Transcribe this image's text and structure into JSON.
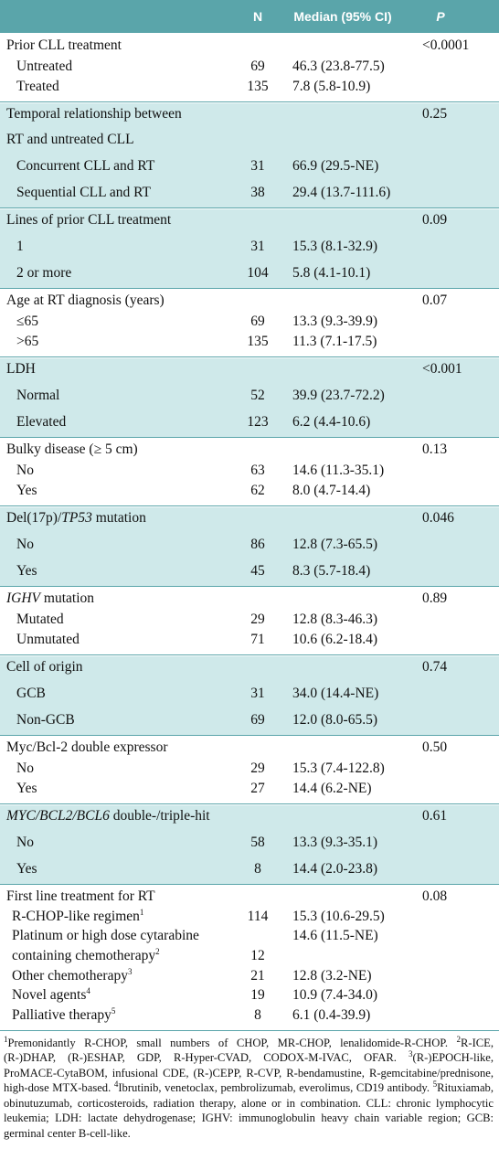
{
  "header": {
    "n": "N",
    "median": "Median (95% CI)",
    "p": "P"
  },
  "sections": [
    {
      "shaded": false,
      "title_parts": [
        {
          "text": "Prior CLL treatment"
        }
      ],
      "p": "<0.0001",
      "rows": [
        {
          "label": "Untreated",
          "n": 69,
          "median": "46.3 (23.8-77.5)"
        },
        {
          "label": "Treated",
          "n": 135,
          "median": "7.8 (5.8-10.9)"
        }
      ]
    },
    {
      "shaded": true,
      "title_parts": [
        {
          "text": "Temporal relationship between"
        },
        {
          "text": "RT and untreated CLL",
          "newline": true
        }
      ],
      "p": "0.25",
      "rows": [
        {
          "label": "Concurrent CLL and RT",
          "n": 31,
          "median": "66.9 (29.5-NE)"
        },
        {
          "label": "Sequential CLL and RT",
          "n": 38,
          "median": "29.4 (13.7-111.6)"
        }
      ]
    },
    {
      "shaded": true,
      "title_parts": [
        {
          "text": "Lines of prior CLL treatment"
        }
      ],
      "p": "0.09",
      "rows": [
        {
          "label": "1",
          "n": 31,
          "median": "15.3 (8.1-32.9)"
        },
        {
          "label": "2 or more",
          "n": 104,
          "median": "5.8 (4.1-10.1)"
        }
      ]
    },
    {
      "shaded": false,
      "title_parts": [
        {
          "text": "Age at RT diagnosis (years)"
        }
      ],
      "p": "0.07",
      "rows": [
        {
          "label": "≤65",
          "n": 69,
          "median": "13.3 (9.3-39.9)"
        },
        {
          "label": ">65",
          "n": 135,
          "median": "11.3 (7.1-17.5)"
        }
      ]
    },
    {
      "shaded": true,
      "title_parts": [
        {
          "text": "LDH"
        }
      ],
      "p": "<0.001",
      "rows": [
        {
          "label": "Normal",
          "n": 52,
          "median": "39.9 (23.7-72.2)"
        },
        {
          "label": "Elevated",
          "n": 123,
          "median": "6.2 (4.4-10.6)"
        }
      ]
    },
    {
      "shaded": false,
      "title_parts": [
        {
          "text": "Bulky disease (≥ 5 cm)"
        }
      ],
      "p": "0.13",
      "rows": [
        {
          "label": "No",
          "n": 63,
          "median": "14.6 (11.3-35.1)"
        },
        {
          "label": "Yes",
          "n": 62,
          "median": "8.0 (4.7-14.4)"
        }
      ]
    },
    {
      "shaded": true,
      "title_parts": [
        {
          "text": "Del(17p)/"
        },
        {
          "text": "TP53",
          "italic": true
        },
        {
          "text": " mutation"
        }
      ],
      "p": "0.046",
      "rows": [
        {
          "label": "No",
          "n": 86,
          "median": "12.8 (7.3-65.5)"
        },
        {
          "label": "Yes",
          "n": 45,
          "median": "8.3 (5.7-18.4)"
        }
      ]
    },
    {
      "shaded": false,
      "title_parts": [
        {
          "text": "IGHV",
          "italic": true
        },
        {
          "text": " mutation"
        }
      ],
      "p": "0.89",
      "rows": [
        {
          "label": "Mutated",
          "n": 29,
          "median": "12.8 (8.3-46.3)"
        },
        {
          "label": "Unmutated",
          "n": 71,
          "median": "10.6 (6.2-18.4)"
        }
      ]
    },
    {
      "shaded": true,
      "title_parts": [
        {
          "text": "Cell of origin"
        }
      ],
      "p": "0.74",
      "rows": [
        {
          "label": "GCB",
          "n": 31,
          "median": "34.0 (14.4-NE)"
        },
        {
          "label": "Non-GCB",
          "n": 69,
          "median": "12.0 (8.0-65.5)"
        }
      ]
    },
    {
      "shaded": false,
      "title_parts": [
        {
          "text": "Myc/Bcl-2 double expressor"
        }
      ],
      "p": "0.50",
      "rows": [
        {
          "label": "No",
          "n": 29,
          "median": "15.3 (7.4-122.8)"
        },
        {
          "label": "Yes",
          "n": 27,
          "median": "14.4 (6.2-NE)"
        }
      ]
    },
    {
      "shaded": true,
      "title_parts": [
        {
          "text": "MYC/BCL2/BCL6",
          "italic": true
        },
        {
          "text": " double-/triple-hit"
        }
      ],
      "p": "0.61",
      "rows": [
        {
          "label": "No",
          "n": 58,
          "median": "13.3 (9.3-35.1)"
        },
        {
          "label": "Yes",
          "n": 8,
          "median": "14.4 (2.0-23.8)"
        }
      ]
    },
    {
      "shaded": false,
      "title_parts": [
        {
          "text": "First line treatment for RT"
        }
      ],
      "p": "0.08",
      "rows": [
        {
          "label": "R-CHOP-like regimen",
          "sup": "1",
          "n": 114,
          "median": "15.3 (10.6-29.5)"
        },
        {
          "label": "Platinum or high dose cytarabine",
          "label_2": "containing chemotherapy",
          "sup": "2",
          "n": 12,
          "median": "14.6 (11.5-NE)"
        },
        {
          "label": "Other chemotherapy",
          "sup": "3",
          "n": 21,
          "median": "12.8 (3.2-NE)"
        },
        {
          "label": "Novel agents",
          "sup": "4",
          "n": 19,
          "median": "10.9 (7.4-34.0)"
        },
        {
          "label": "Palliative therapy",
          "sup": "5",
          "n": 8,
          "median": "6.1 (0.4-39.9)"
        }
      ]
    }
  ],
  "footnote_parts": [
    {
      "text": "1",
      "sup": true
    },
    {
      "text": "Premonidantly R-CHOP, small numbers of CHOP, MR-CHOP, lenalidomide-R-CHOP. "
    },
    {
      "text": "2",
      "sup": true
    },
    {
      "text": "R-ICE, (R-)DHAP, (R-)ESHAP, GDP, R-Hyper-CVAD, CODOX-M-IVAC, OFAR. "
    },
    {
      "text": "3",
      "sup": true
    },
    {
      "text": "(R-)EPOCH-like, ProMACE-CytaBOM, infusional CDE, (R-)CEPP, R-CVP, R-bendamustine, R-gemcitabine/prednisone, high-dose MTX-based. "
    },
    {
      "text": "4",
      "sup": true
    },
    {
      "text": "Ibrutinib, venetoclax, pembrolizumab, everolimus, CD19 antibody. "
    },
    {
      "text": "5",
      "sup": true
    },
    {
      "text": "Rituxiamab, obinutuzumab, corticosteroids, radiation therapy, alone or in combination. CLL: chronic lymphocytic leukemia; LDH: lactate dehydrogenase; IGHV: immunoglobulin heavy chain variable region; GCB: germinal center B-cell-like."
    }
  ]
}
